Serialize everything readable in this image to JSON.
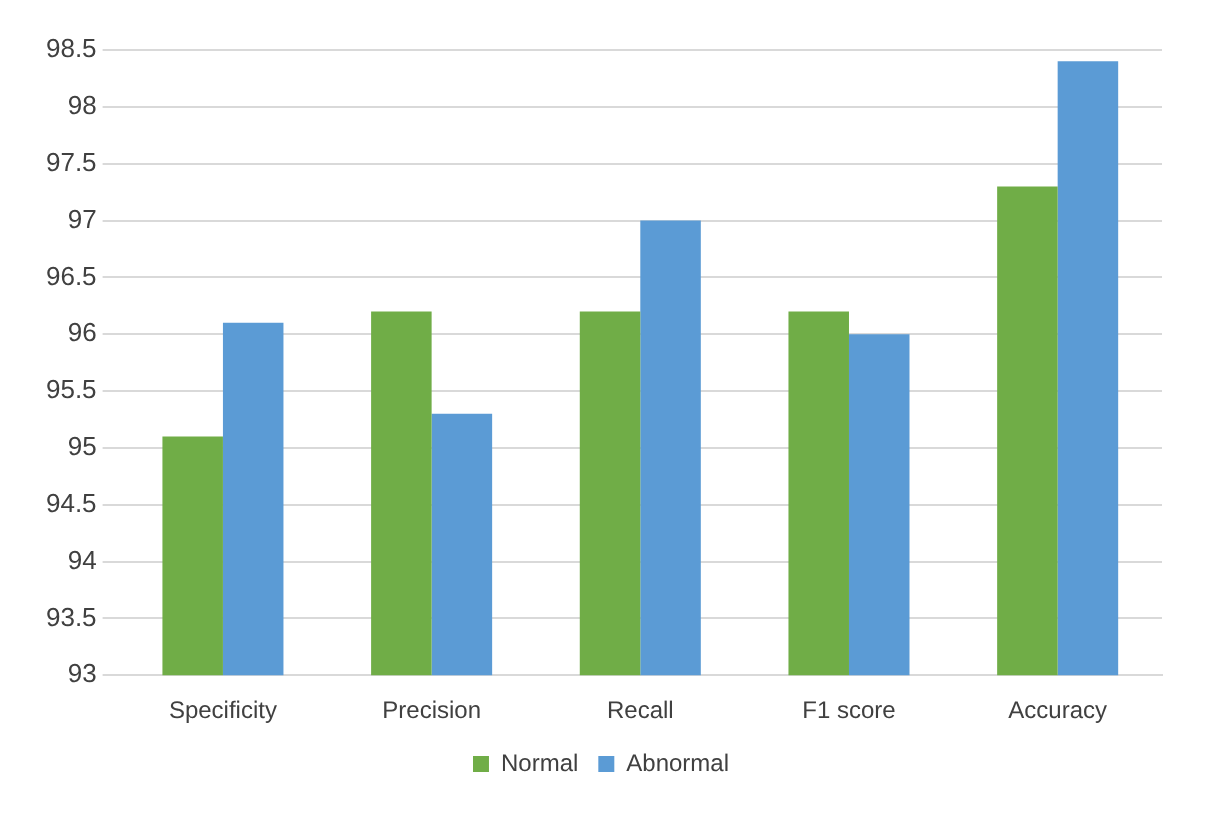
{
  "chart_data": {
    "type": "bar",
    "categories": [
      "Specificity",
      "Precision",
      "Recall",
      "F1 score",
      "Accuracy"
    ],
    "series": [
      {
        "name": "Normal",
        "color": "#70ad47",
        "values": [
          95.1,
          96.2,
          96.2,
          96.2,
          97.3
        ]
      },
      {
        "name": "Abnormal",
        "color": "#5b9bd5",
        "values": [
          96.1,
          95.3,
          97.0,
          96.0,
          98.4
        ]
      }
    ],
    "ylim": [
      93,
      98.5
    ],
    "yticks": [
      93,
      93.5,
      94,
      94.5,
      95,
      95.5,
      96,
      96.5,
      97,
      97.5,
      98,
      98.5
    ],
    "grid": "y",
    "legend": "bottom"
  }
}
